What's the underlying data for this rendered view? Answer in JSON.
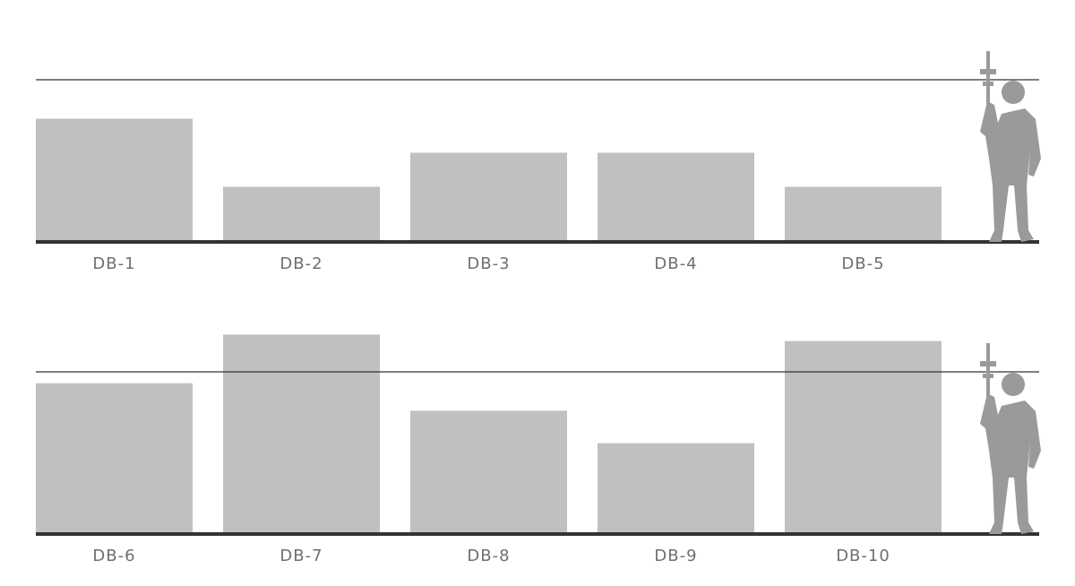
{
  "chart_data": [
    {
      "type": "bar",
      "categories": [
        "DB-1",
        "DB-2",
        "DB-3",
        "DB-4",
        "DB-5"
      ],
      "values": [
        0.76,
        0.34,
        0.55,
        0.55,
        0.34
      ],
      "color": "#c0c0c0",
      "ylim": [
        0,
        1.4
      ],
      "reference_line": 1
    },
    {
      "type": "bar",
      "categories": [
        "DB-6",
        "DB-7",
        "DB-8",
        "DB-9",
        "DB-10"
      ],
      "values": [
        0.93,
        1.23,
        0.76,
        0.56,
        1.19
      ],
      "color": "#c0c0c0",
      "ylim": [
        0,
        1.4
      ],
      "reference_line": 1
    }
  ]
}
